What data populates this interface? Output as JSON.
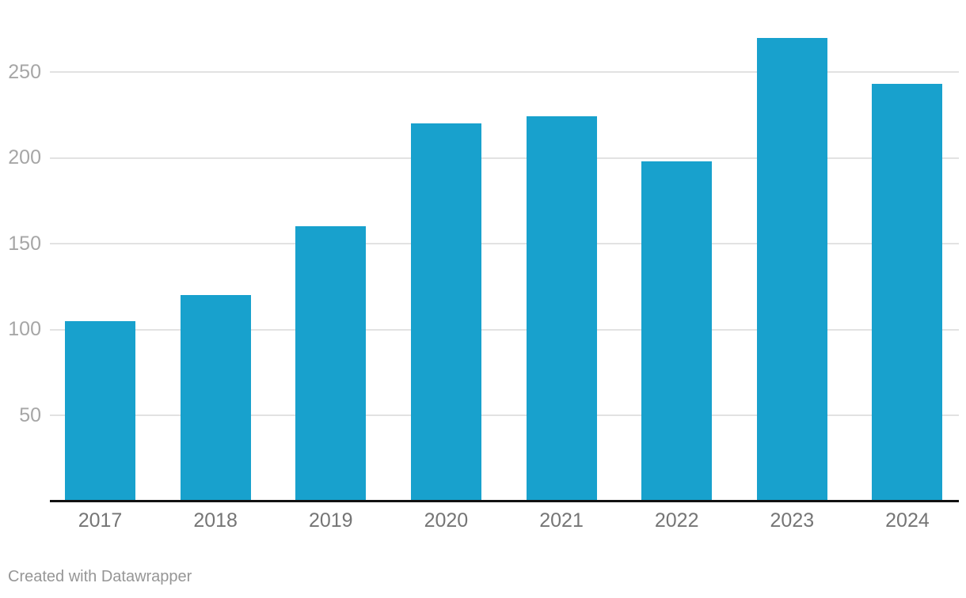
{
  "chart_data": {
    "type": "bar",
    "categories": [
      "2017",
      "2018",
      "2019",
      "2020",
      "2021",
      "2022",
      "2023",
      "2024"
    ],
    "values": [
      105,
      120,
      160,
      220,
      224,
      198,
      270,
      243
    ],
    "title": "",
    "xlabel": "",
    "ylabel": "",
    "ylim": [
      0,
      292
    ],
    "yticks": [
      50,
      100,
      150,
      200,
      250
    ],
    "grid": true,
    "legend": "none",
    "bar_color": "#18a1cd",
    "gridline_color": "#e2e2e2",
    "axis_line_color": "#111111",
    "y_tick_label_color": "#a6a6a6",
    "x_tick_label_color": "#757575"
  },
  "footer": {
    "credit": "Created with Datawrapper"
  }
}
